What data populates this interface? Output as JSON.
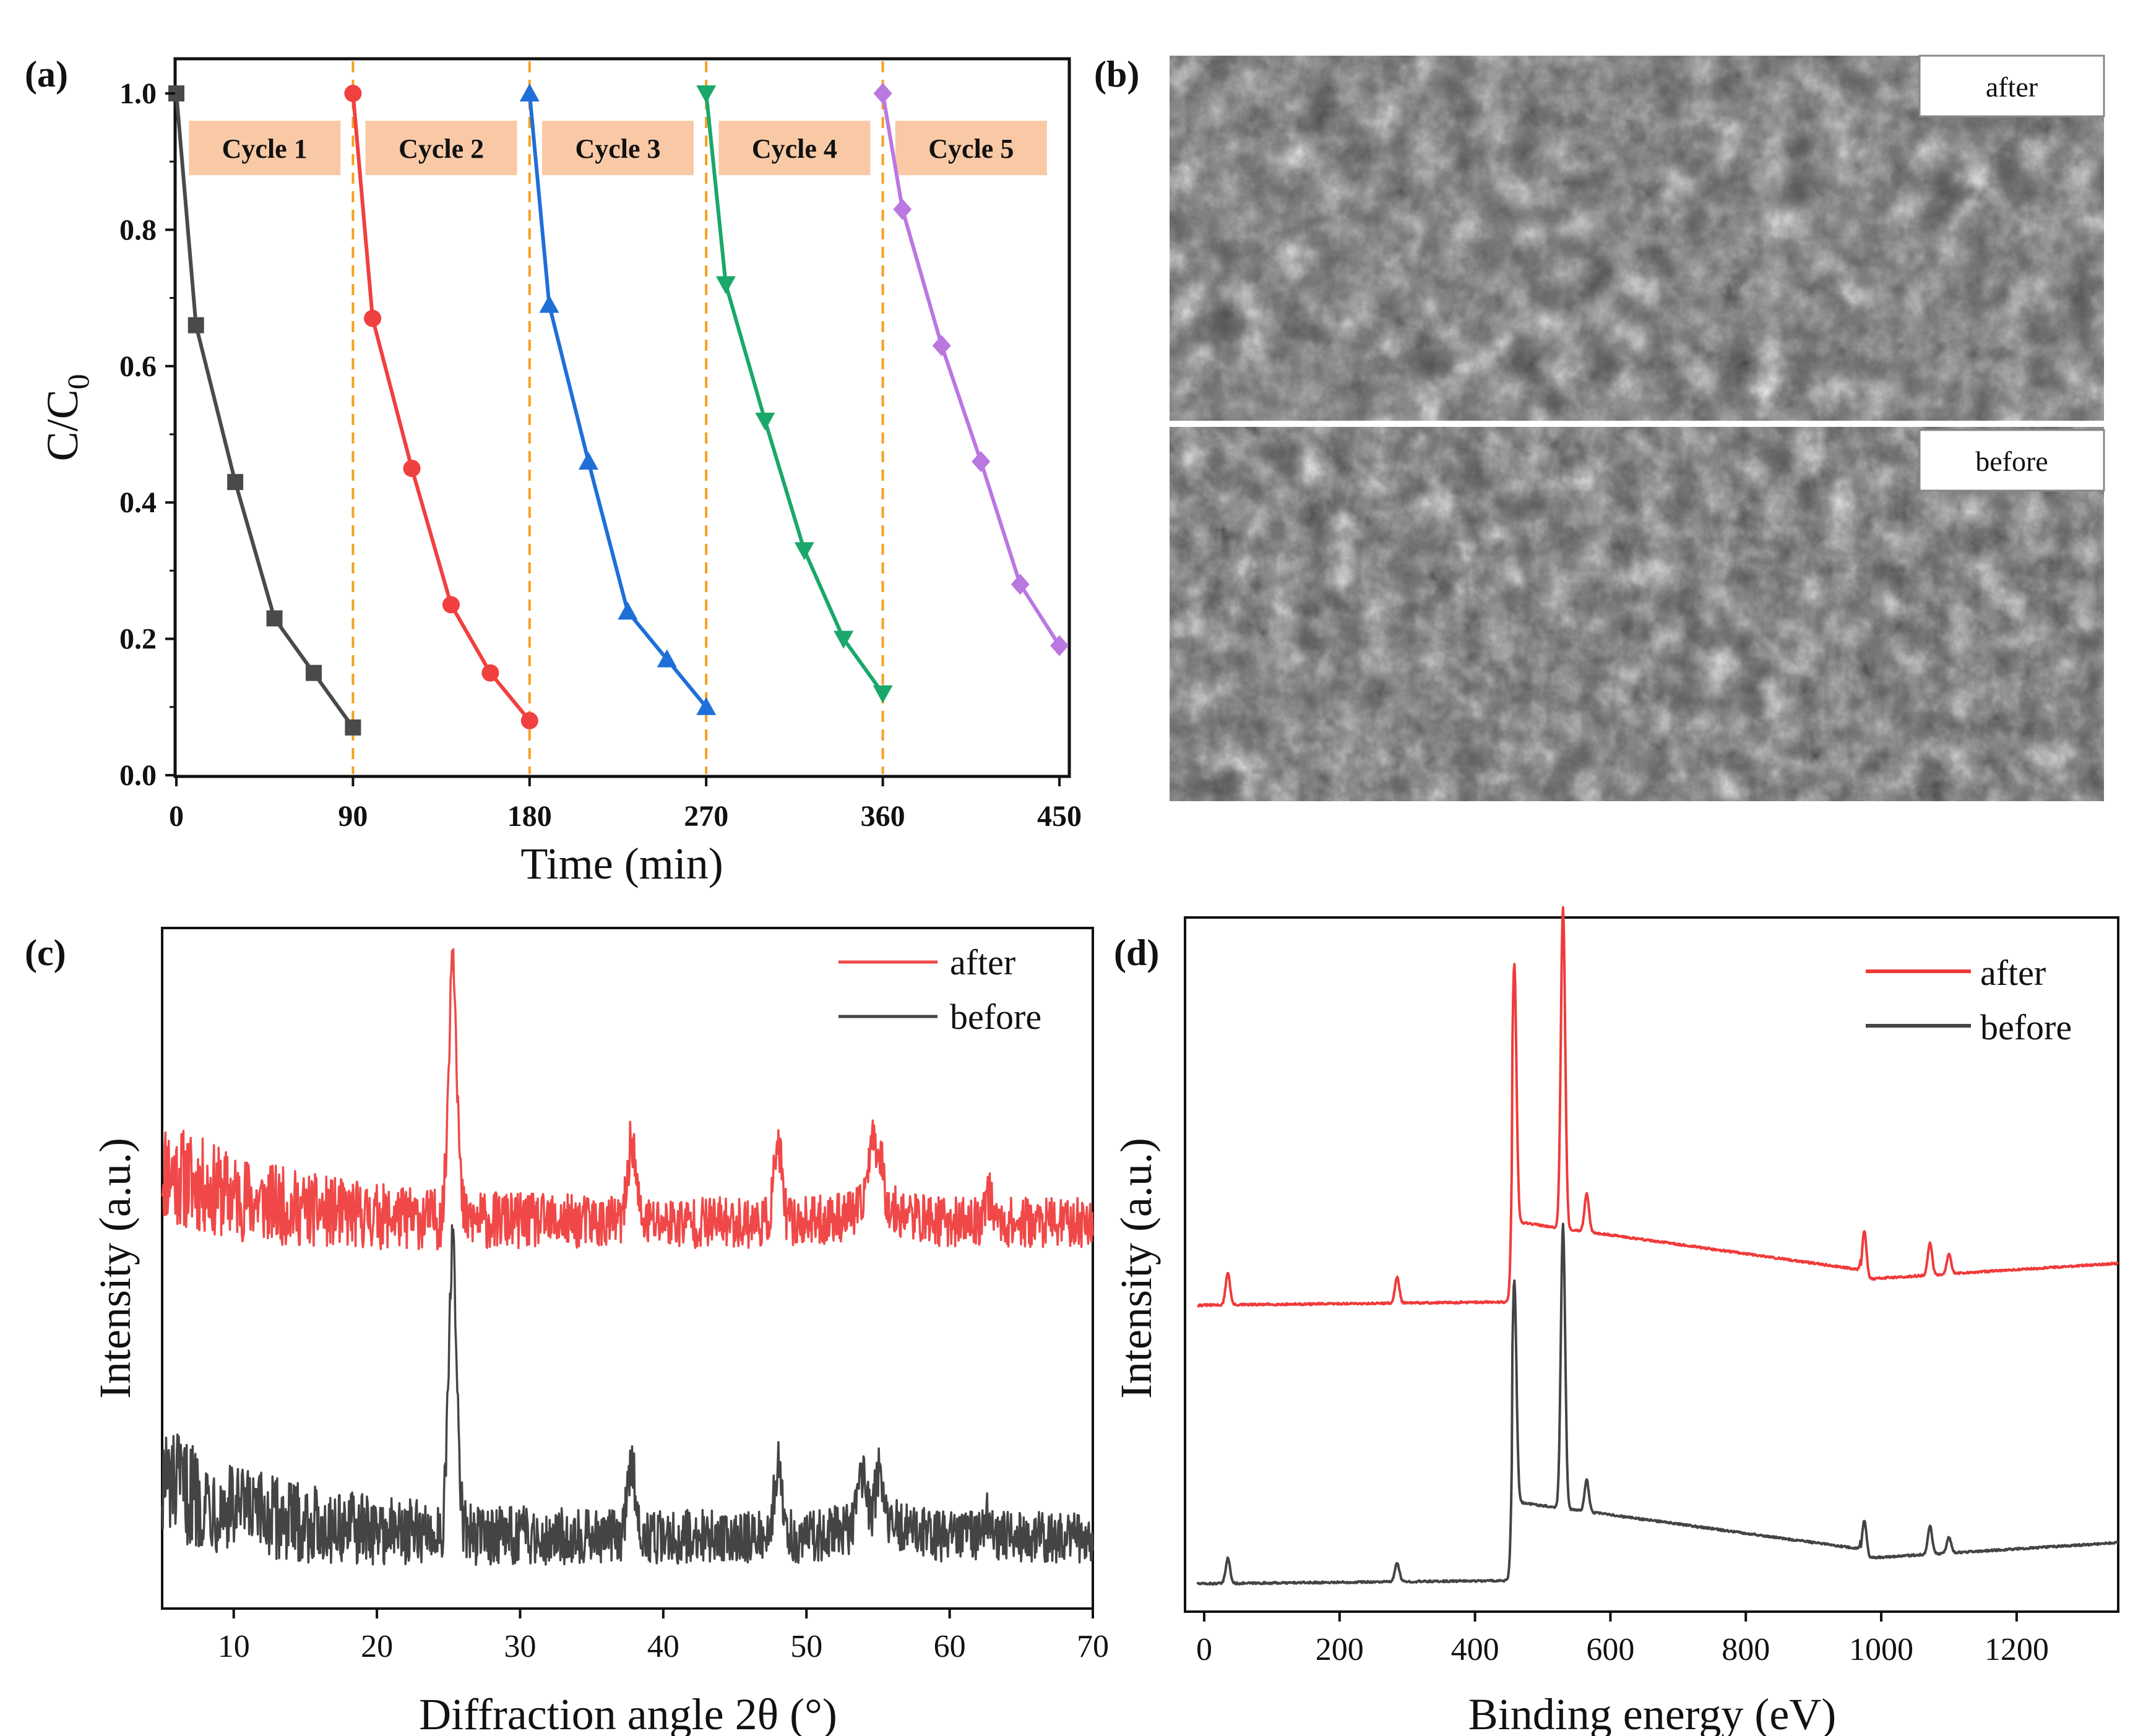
{
  "panels": {
    "a": {
      "label": "(a)",
      "chart_data": {
        "type": "line",
        "xlabel": "Time (min)",
        "ylabel_main": "C/C",
        "ylabel_sub": "0",
        "xlim": [
          0,
          450
        ],
        "ylim": [
          0.0,
          1.0
        ],
        "xticks": [
          "0",
          "90",
          "180",
          "270",
          "360",
          "450"
        ],
        "yticks": [
          "0.0",
          "0.2",
          "0.4",
          "0.6",
          "0.8",
          "1.0"
        ],
        "cycle_boundaries": [
          90,
          180,
          270,
          360
        ],
        "series": [
          {
            "name": "Cycle 1",
            "color": "#4a4a4a",
            "marker": "square",
            "x": [
              0,
              10,
              30,
              50,
              70,
              90
            ],
            "y": [
              1.0,
              0.66,
              0.43,
              0.23,
              0.15,
              0.07
            ]
          },
          {
            "name": "Cycle 2",
            "color": "#f04040",
            "marker": "circle",
            "x": [
              90,
              100,
              120,
              140,
              160,
              180
            ],
            "y": [
              1.0,
              0.67,
              0.45,
              0.25,
              0.15,
              0.08
            ]
          },
          {
            "name": "Cycle 3",
            "color": "#1f6fd8",
            "marker": "triangle-up",
            "x": [
              180,
              190,
              210,
              230,
              250,
              270
            ],
            "y": [
              1.0,
              0.69,
              0.46,
              0.24,
              0.17,
              0.1
            ]
          },
          {
            "name": "Cycle 4",
            "color": "#1aa86a",
            "marker": "triangle-down",
            "x": [
              270,
              280,
              300,
              320,
              340,
              360
            ],
            "y": [
              1.0,
              0.72,
              0.52,
              0.33,
              0.2,
              0.12
            ]
          },
          {
            "name": "Cycle 5",
            "color": "#bb77e0",
            "marker": "diamond",
            "x": [
              360,
              370,
              390,
              410,
              430,
              450
            ],
            "y": [
              1.0,
              0.83,
              0.63,
              0.46,
              0.28,
              0.19
            ]
          }
        ]
      }
    },
    "b": {
      "label": "(b)",
      "images": [
        {
          "label": "after"
        },
        {
          "label": "before"
        }
      ]
    },
    "c": {
      "label": "(c)",
      "chart_data": {
        "type": "line",
        "xlabel": "Diffraction angle 2θ (°)",
        "ylabel": "Intensity (a.u.)",
        "xlim": [
          5,
          70
        ],
        "xticks": [
          "10",
          "20",
          "30",
          "40",
          "50",
          "60",
          "70"
        ],
        "series": [
          {
            "name": "after",
            "color": "#f04848",
            "peaks": [
              {
                "x": 25.3,
                "rel": 1.0
              },
              {
                "x": 37.8,
                "rel": 0.3
              },
              {
                "x": 48.0,
                "rel": 0.28
              },
              {
                "x": 54.5,
                "rel": 0.22
              },
              {
                "x": 55.1,
                "rel": 0.2
              },
              {
                "x": 62.7,
                "rel": 0.1
              }
            ]
          },
          {
            "name": "before",
            "color": "#444444",
            "peaks": [
              {
                "x": 25.3,
                "rel": 1.0
              },
              {
                "x": 37.8,
                "rel": 0.25
              },
              {
                "x": 48.0,
                "rel": 0.25
              },
              {
                "x": 53.9,
                "rel": 0.18
              },
              {
                "x": 55.1,
                "rel": 0.18
              },
              {
                "x": 62.7,
                "rel": 0.08
              }
            ]
          }
        ]
      }
    },
    "d": {
      "label": "(d)",
      "chart_data": {
        "type": "line",
        "xlabel": "Binding energy (eV)",
        "ylabel": "Intensity (a.u.)",
        "xlim": [
          -10,
          1350
        ],
        "xticks": [
          "0",
          "200",
          "400",
          "600",
          "800",
          "1000",
          "1200"
        ],
        "series": [
          {
            "name": "after",
            "color": "#f03a3a",
            "peaks": [
              {
                "x": 35,
                "rel": 0.1
              },
              {
                "x": 285,
                "rel": 0.08
              },
              {
                "x": 458,
                "rel": 0.8
              },
              {
                "x": 530,
                "rel": 1.0
              },
              {
                "x": 565,
                "rel": 0.12
              },
              {
                "x": 975,
                "rel": 0.15
              },
              {
                "x": 1072,
                "rel": 0.1
              },
              {
                "x": 1100,
                "rel": 0.06
              }
            ]
          },
          {
            "name": "before",
            "color": "#444444",
            "peaks": [
              {
                "x": 35,
                "rel": 0.08
              },
              {
                "x": 285,
                "rel": 0.06
              },
              {
                "x": 458,
                "rel": 0.7
              },
              {
                "x": 530,
                "rel": 0.9
              },
              {
                "x": 565,
                "rel": 0.1
              },
              {
                "x": 975,
                "rel": 0.12
              },
              {
                "x": 1072,
                "rel": 0.09
              },
              {
                "x": 1100,
                "rel": 0.05
              }
            ]
          }
        ]
      }
    }
  }
}
